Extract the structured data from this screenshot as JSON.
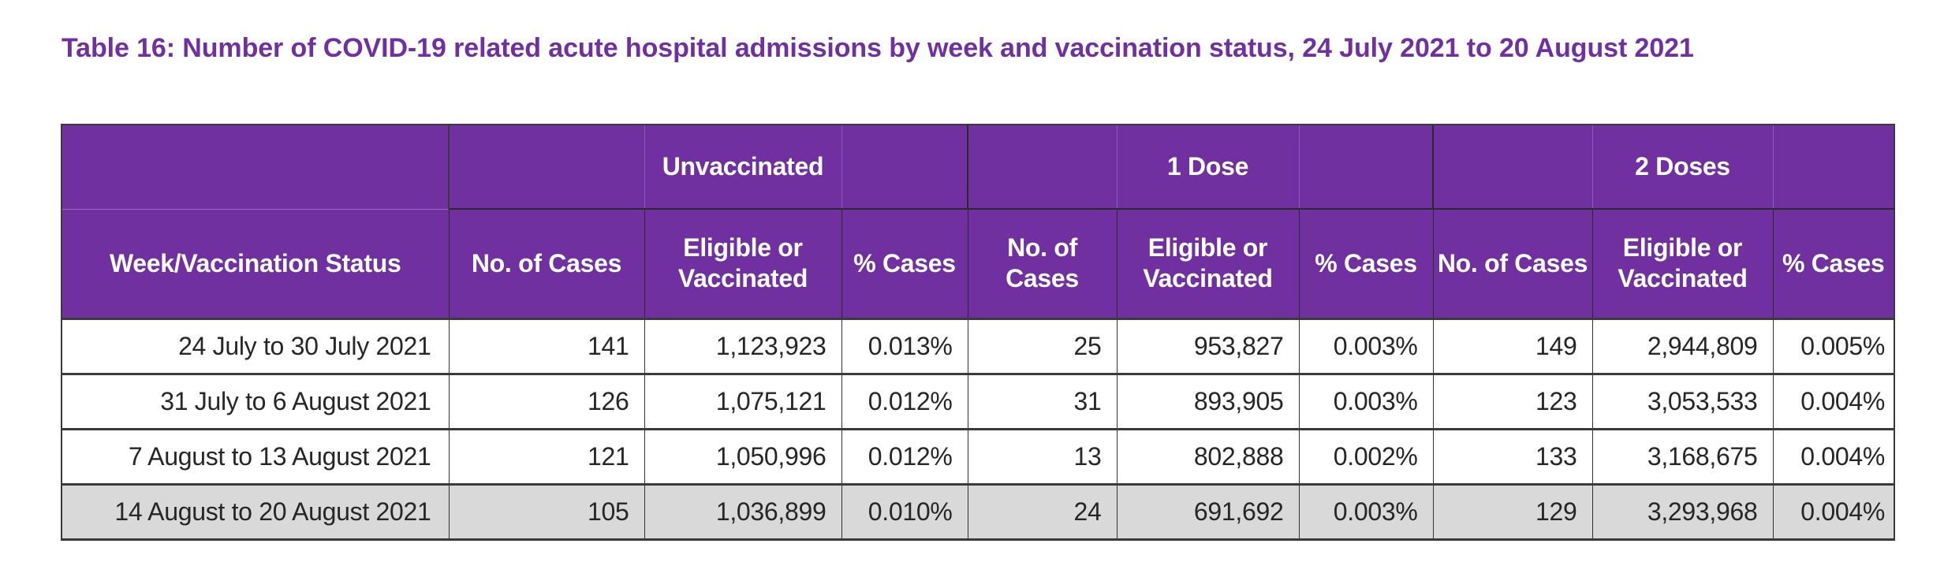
{
  "title": "Table 16: Number of COVID-19 related acute hospital admissions by week and vaccination status, 24 July 2021 to 20 August 2021",
  "colors": {
    "accent": "#7030A0",
    "header_text": "#FFFFFF",
    "shaded_row": "#D9D9D9",
    "body_text": "#262626"
  },
  "table": {
    "groups": [
      "Unvaccinated",
      "1 Dose",
      "2 Doses"
    ],
    "row_header_label": "Week/Vaccination Status",
    "sub_headers": {
      "g0": {
        "cases": "No. of Cases",
        "eligible": "Eligible or Vaccinated",
        "pct": "% Cases"
      },
      "g1": {
        "cases": "No. of Cases",
        "eligible": "Eligible or Vaccinated",
        "pct": "% Cases"
      },
      "g2": {
        "cases": "No. of Cases",
        "eligible": "Eligible or Vaccinated",
        "pct": "% Cases"
      }
    },
    "rows": [
      {
        "week": "24 July to 30 July 2021",
        "unvaccinated": {
          "cases": "141",
          "eligible": "1,123,923",
          "pct": "0.013%"
        },
        "one_dose": {
          "cases": "25",
          "eligible": "953,827",
          "pct": "0.003%"
        },
        "two_doses": {
          "cases": "149",
          "eligible": "2,944,809",
          "pct": "0.005%"
        },
        "shaded": false
      },
      {
        "week": "31 July to 6 August 2021",
        "unvaccinated": {
          "cases": "126",
          "eligible": "1,075,121",
          "pct": "0.012%"
        },
        "one_dose": {
          "cases": "31",
          "eligible": "893,905",
          "pct": "0.003%"
        },
        "two_doses": {
          "cases": "123",
          "eligible": "3,053,533",
          "pct": "0.004%"
        },
        "shaded": false
      },
      {
        "week": "7 August to 13 August 2021",
        "unvaccinated": {
          "cases": "121",
          "eligible": "1,050,996",
          "pct": "0.012%"
        },
        "one_dose": {
          "cases": "13",
          "eligible": "802,888",
          "pct": "0.002%"
        },
        "two_doses": {
          "cases": "133",
          "eligible": "3,168,675",
          "pct": "0.004%"
        },
        "shaded": false
      },
      {
        "week": "14 August to 20 August 2021",
        "unvaccinated": {
          "cases": "105",
          "eligible": "1,036,899",
          "pct": "0.010%"
        },
        "one_dose": {
          "cases": "24",
          "eligible": "691,692",
          "pct": "0.003%"
        },
        "two_doses": {
          "cases": "129",
          "eligible": "3,293,968",
          "pct": "0.004%"
        },
        "shaded": true
      }
    ]
  }
}
